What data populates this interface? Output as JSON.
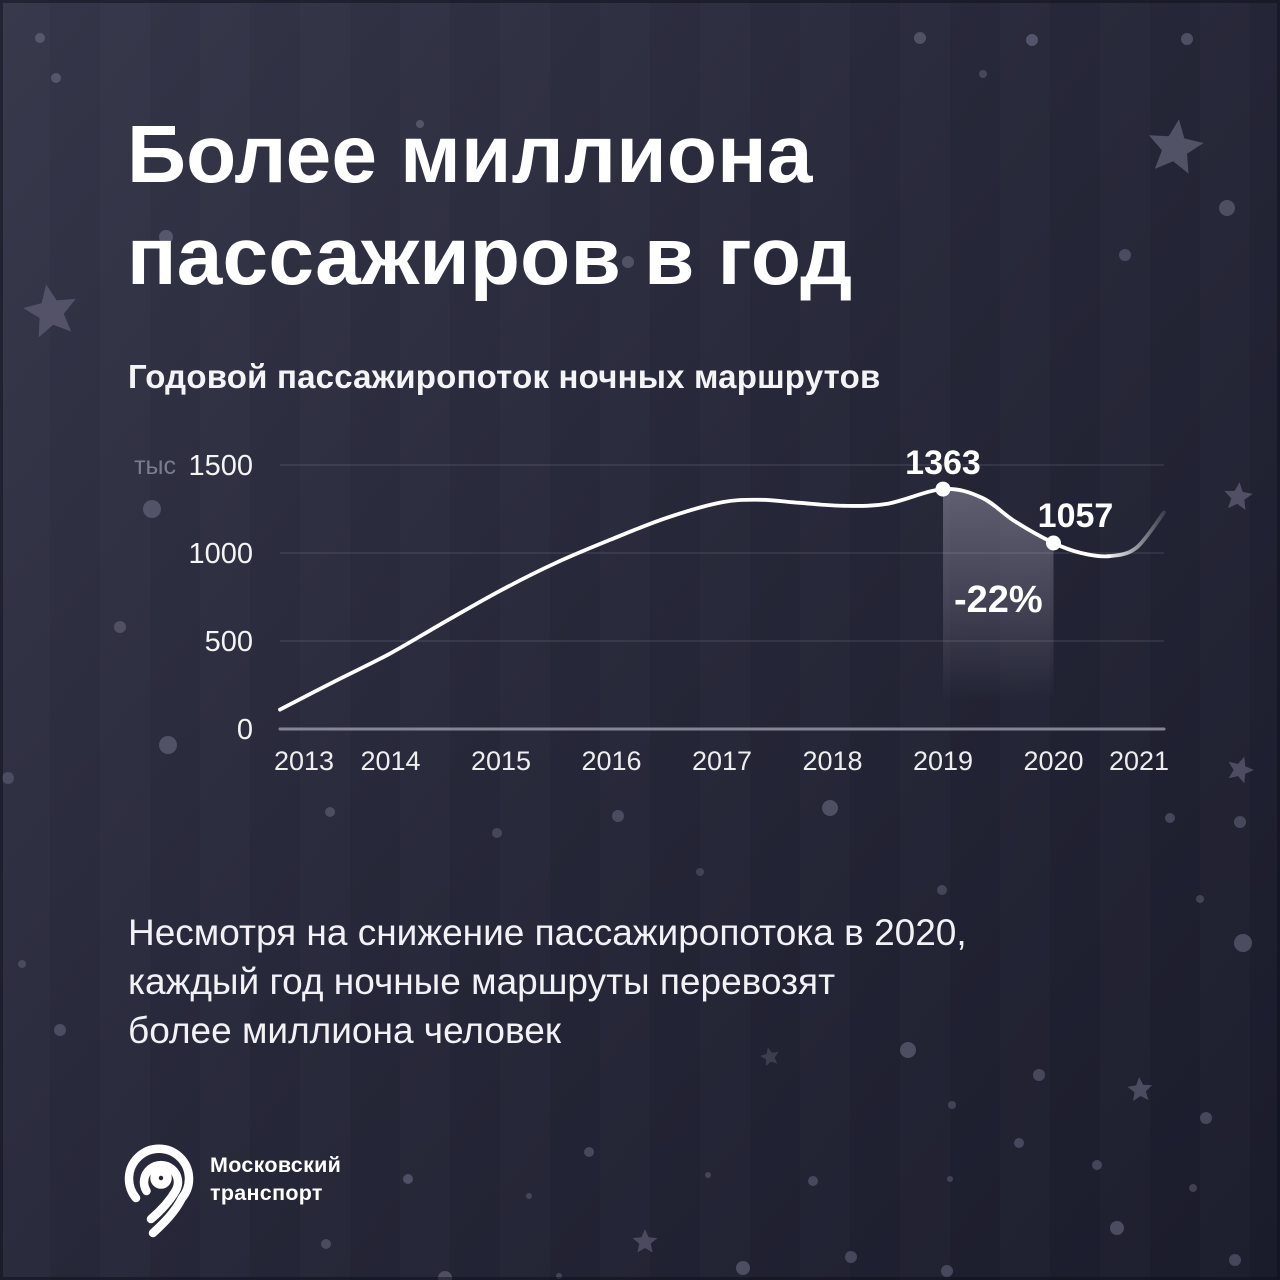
{
  "header": {
    "title_line1": "Более миллиона",
    "title_line2": "пассажиров в год"
  },
  "chart_data": {
    "type": "line",
    "title": "Годовой пассажиропоток ночных маршрутов",
    "unit_label": "тыс",
    "ylabel": "тыс",
    "xlabel": "",
    "ylim": [
      0,
      1500
    ],
    "y_ticks": [
      0,
      500,
      1000,
      1500
    ],
    "grid": "horizontal",
    "legend": "none",
    "x": [
      2013,
      2014,
      2015,
      2016,
      2017,
      2018,
      2019,
      2020,
      2021
    ],
    "values": [
      110,
      430,
      790,
      1080,
      1290,
      1270,
      1363,
      1057,
      1230
    ],
    "samples": [
      [
        2013,
        110
      ],
      [
        2013.5,
        272
      ],
      [
        2014,
        430
      ],
      [
        2014.5,
        612
      ],
      [
        2015,
        788
      ],
      [
        2015.5,
        945
      ],
      [
        2016,
        1078
      ],
      [
        2016.5,
        1200
      ],
      [
        2017,
        1288
      ],
      [
        2017.35,
        1302
      ],
      [
        2017.7,
        1285
      ],
      [
        2018.1,
        1268
      ],
      [
        2018.5,
        1280
      ],
      [
        2019,
        1363
      ],
      [
        2019.35,
        1315
      ],
      [
        2019.65,
        1180
      ],
      [
        2020,
        1057
      ],
      [
        2020.25,
        1000
      ],
      [
        2020.5,
        982
      ],
      [
        2020.75,
        1030
      ],
      [
        2021,
        1230
      ]
    ],
    "labeled_points": [
      {
        "year": 2019,
        "value": 1363,
        "label": "1363"
      },
      {
        "year": 2020,
        "value": 1057,
        "label": "1057"
      }
    ],
    "drop_annotation": {
      "label": "-22%",
      "from_year": 2019,
      "to_year": 2020
    },
    "fade_from_year": 2020.5
  },
  "footnote": {
    "lines": [
      "Несмотря на снижение пассажиропотока в 2020,",
      "каждый год ночные маршруты перевозят",
      "более миллиона человек"
    ]
  },
  "logo": {
    "line1": "Московский",
    "line2": "транспорт"
  },
  "colors": {
    "background_top": "#353649",
    "background_mid": "#262738",
    "background_bottom": "#1a1b2b",
    "text": "#ffffff",
    "muted_text": "#7c7c90",
    "line": "#ffffff",
    "axis": "#9c9cac",
    "gridline": "rgba(255,255,255,0.08)",
    "star": "#55546a",
    "dot": "#777790",
    "shade": "#d6d0e8"
  }
}
